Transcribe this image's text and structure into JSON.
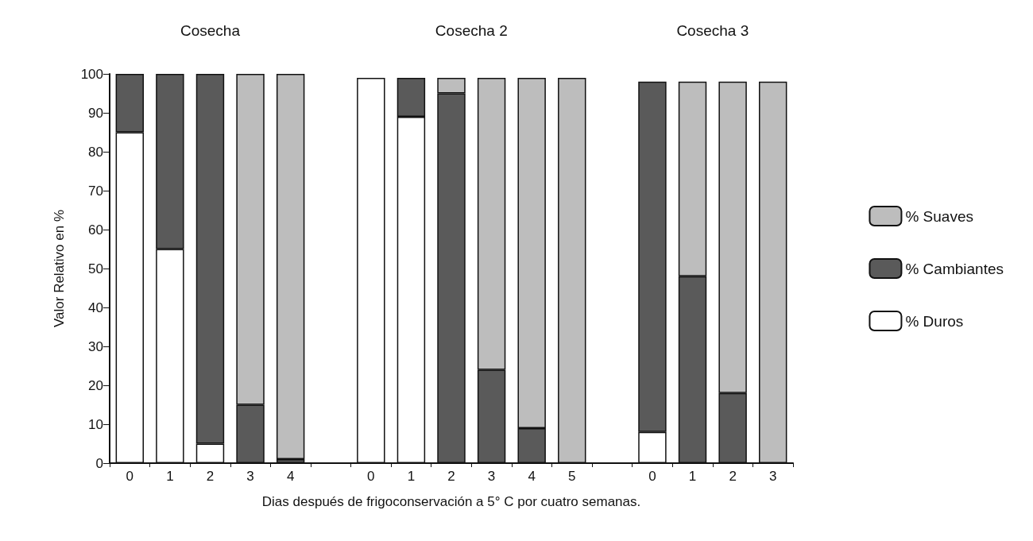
{
  "chart_data": {
    "type": "bar",
    "stacked": true,
    "xlabel": "Dias después de frigoconservación a 5° C por cuatro semanas.",
    "ylabel": "Valor Relativo en %",
    "categories": [
      "0",
      "1",
      "2",
      "3",
      "4",
      null,
      "0",
      "1",
      "2",
      "3",
      "4",
      "5",
      null,
      "0",
      "1",
      "2",
      "3"
    ],
    "series": [
      {
        "name": "% Duros",
        "color": "#ffffff",
        "values": [
          85,
          55,
          5,
          0,
          0,
          null,
          99,
          89,
          0,
          0,
          0,
          0,
          null,
          8,
          0,
          0,
          0
        ]
      },
      {
        "name": "% Cambiantes",
        "color": "#5a5a5a",
        "values": [
          15,
          45,
          95,
          15,
          1,
          null,
          0,
          10,
          95,
          24,
          9,
          0,
          null,
          90,
          48,
          18,
          0
        ]
      },
      {
        "name": "% Suaves",
        "color": "#bdbdbd",
        "values": [
          0,
          0,
          0,
          85,
          99,
          null,
          0,
          0,
          4,
          75,
          90,
          99,
          null,
          0,
          50,
          80,
          98
        ]
      }
    ],
    "ylim": [
      0,
      100
    ],
    "yticks": [
      0,
      10,
      20,
      30,
      40,
      50,
      60,
      70,
      80,
      90,
      100
    ],
    "grid": false,
    "legend": "right",
    "annotations": [
      "Cosecha",
      "Cosecha 2",
      "Cosecha 3"
    ]
  }
}
